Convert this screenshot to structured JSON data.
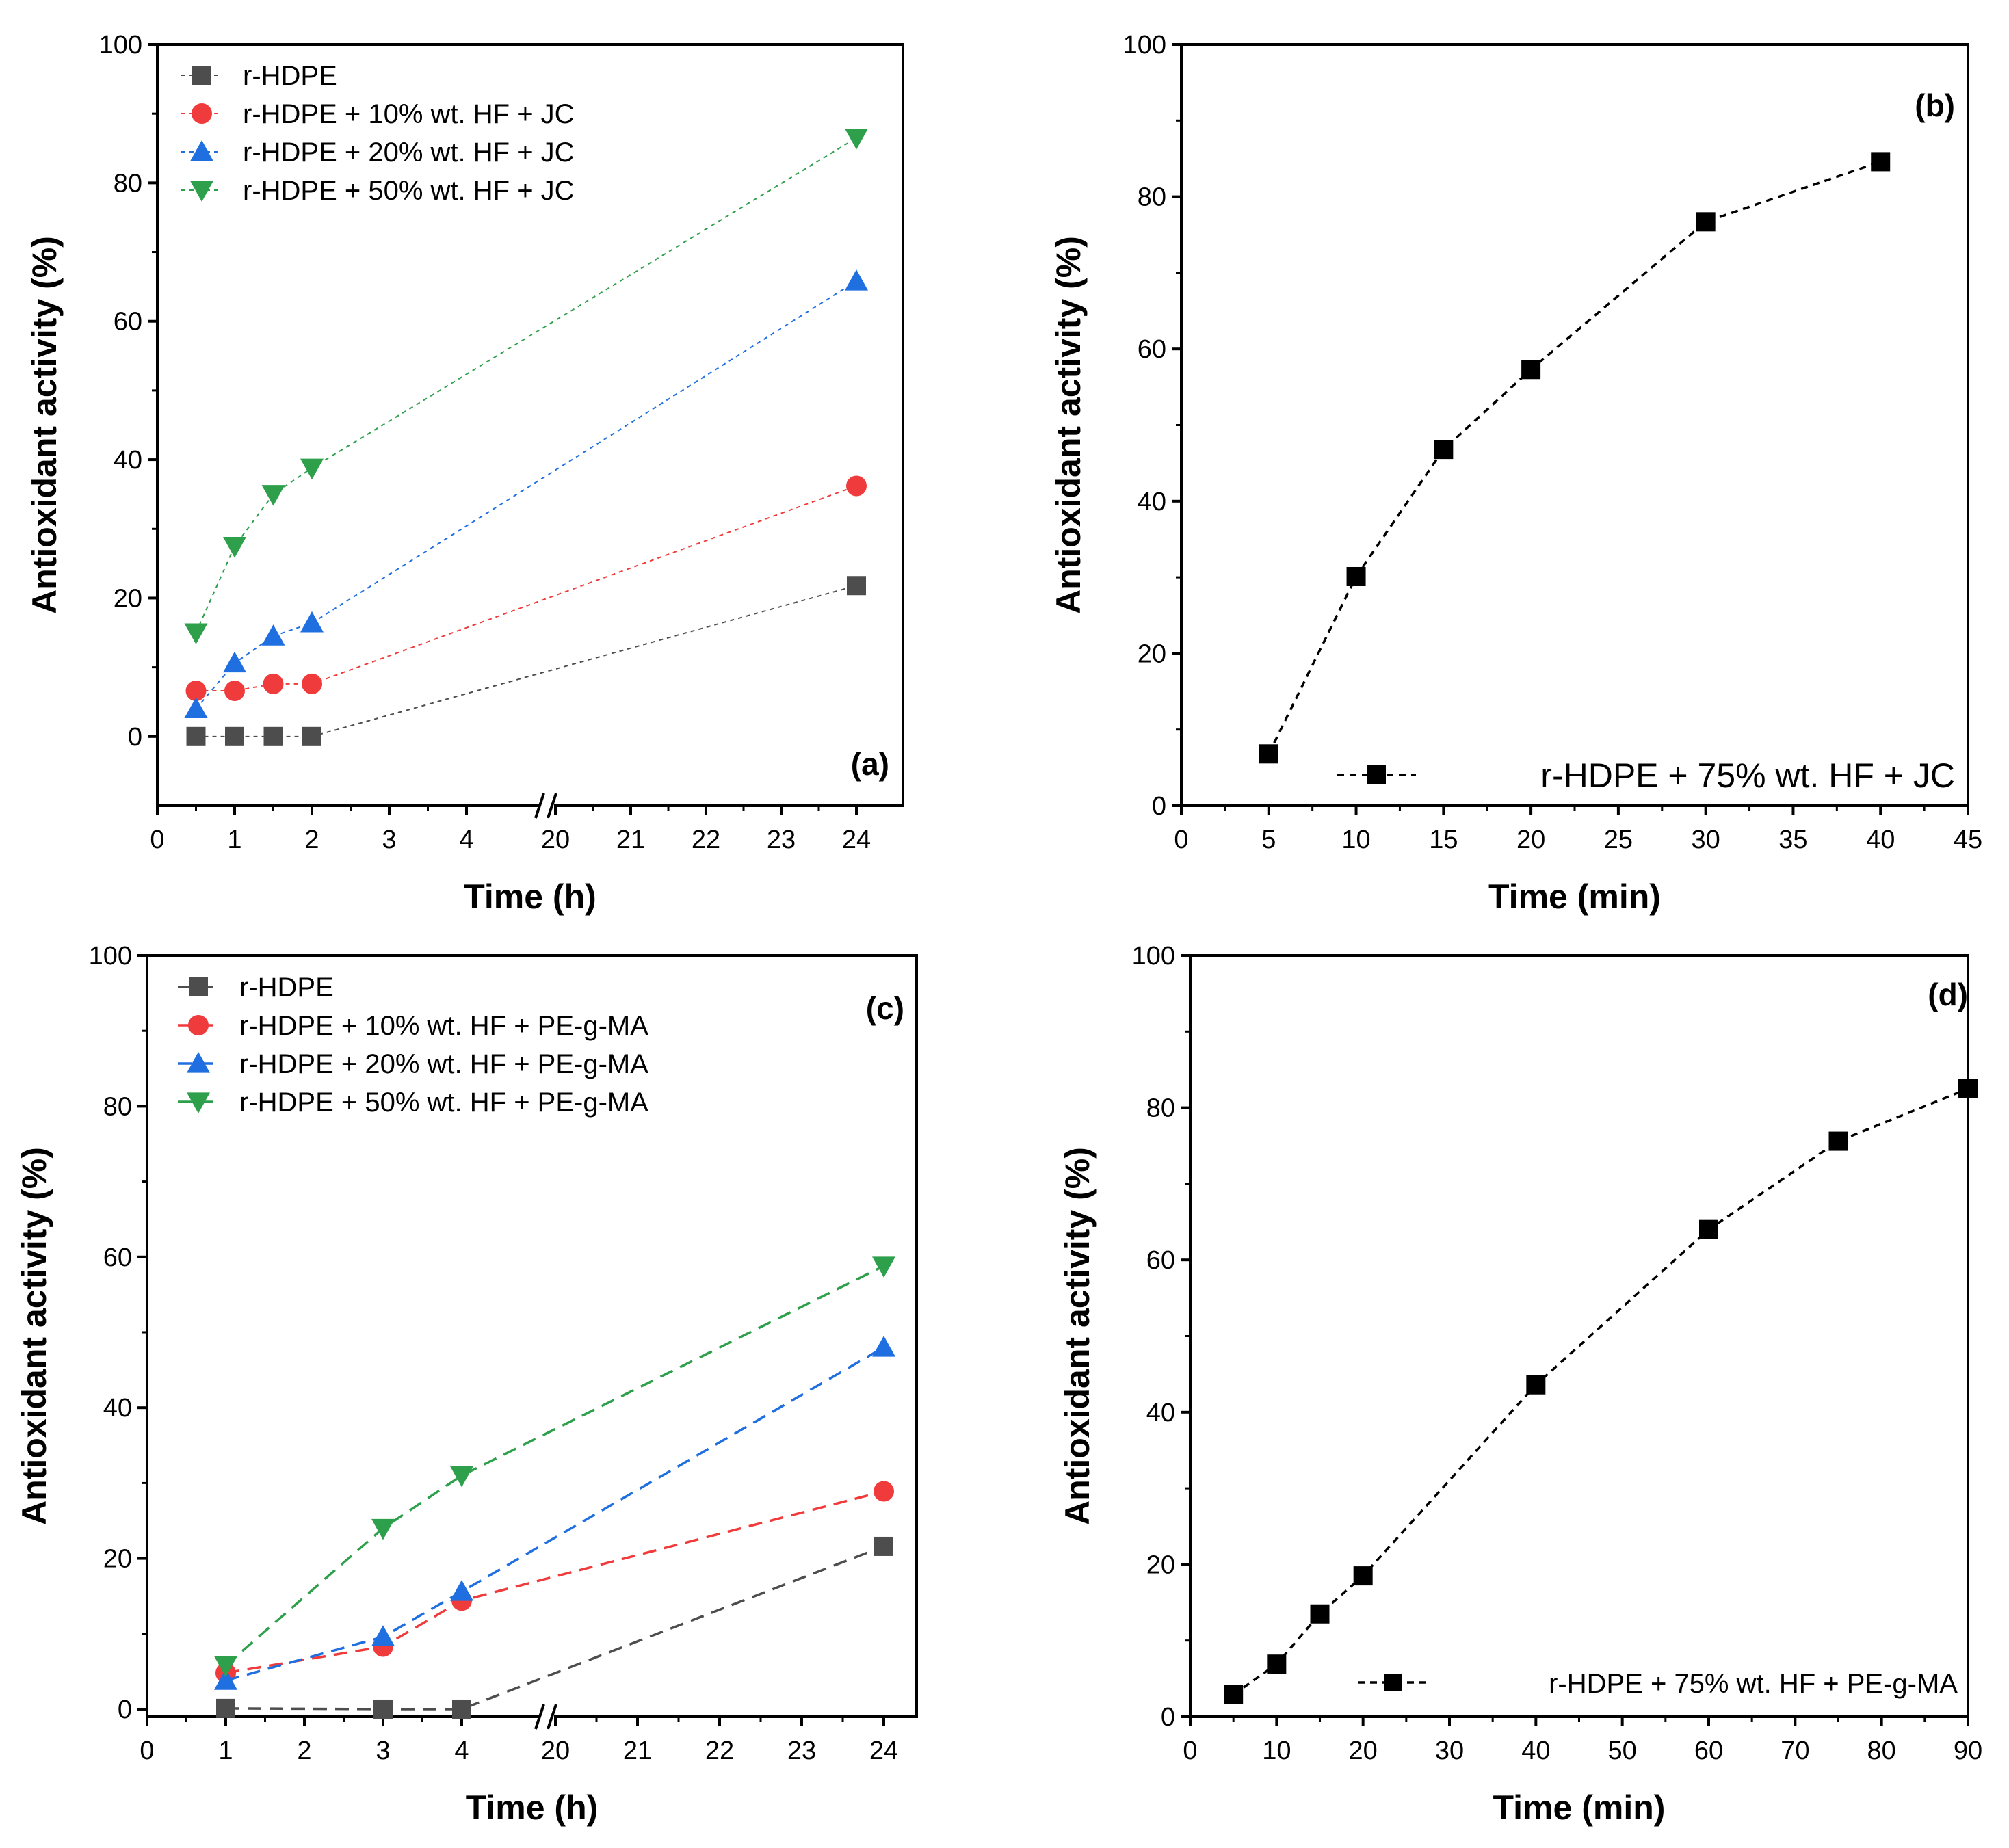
{
  "colors": {
    "r_hdpe": "#4d4d4d",
    "hf10": "#ef3b3b",
    "hf20": "#1f6fe0",
    "hf50": "#2ea04c",
    "black": "#000000"
  },
  "chart_data": [
    {
      "id": "a",
      "type": "line",
      "panel_label": "(a)",
      "xlabel": "Time (h)",
      "ylabel": "Antioxidant activity (%)",
      "ylim": [
        -10,
        100
      ],
      "yticks": [
        0,
        20,
        40,
        60,
        80,
        100
      ],
      "x_axis_broken": true,
      "xticks": [
        {
          "value": 0,
          "label": "0"
        },
        {
          "value": 1,
          "label": "1"
        },
        {
          "value": 2,
          "label": "2"
        },
        {
          "value": 3,
          "label": "3"
        },
        {
          "value": 4,
          "label": "4"
        },
        {
          "value": 20,
          "label": "20"
        },
        {
          "value": 21,
          "label": "21"
        },
        {
          "value": 22,
          "label": "22"
        },
        {
          "value": 23,
          "label": "23"
        },
        {
          "value": 24,
          "label": "24"
        }
      ],
      "legend_position": "top-left",
      "series": [
        {
          "name": "r-HDPE",
          "marker": "square",
          "color_key": "r_hdpe",
          "x": [
            0.5,
            1,
            1.5,
            2,
            24
          ],
          "values": [
            0,
            0,
            0,
            0,
            21.8
          ]
        },
        {
          "name": "r-HDPE + 10% wt. HF + JC",
          "marker": "circle",
          "color_key": "hf10",
          "x": [
            0.5,
            1,
            1.5,
            2,
            24
          ],
          "values": [
            6.6,
            6.6,
            7.6,
            7.6,
            36.2
          ]
        },
        {
          "name": "r-HDPE + 20% wt. HF + JC",
          "marker": "triangle-up",
          "color_key": "hf20",
          "x": [
            0.5,
            1,
            1.5,
            2,
            24
          ],
          "values": [
            4.0,
            10.6,
            14.5,
            16.4,
            65.8
          ]
        },
        {
          "name": "r-HDPE + 50% wt. HF + JC",
          "marker": "triangle-down",
          "color_key": "hf50",
          "x": [
            0.5,
            1,
            1.5,
            2,
            24
          ],
          "values": [
            15.0,
            27.5,
            35.0,
            38.8,
            86.5
          ]
        }
      ]
    },
    {
      "id": "b",
      "type": "line",
      "panel_label": "(b)",
      "xlabel": "Time (min)",
      "ylabel": "Antioxidant activity (%)",
      "xlim": [
        0,
        45
      ],
      "ylim": [
        0,
        100
      ],
      "xticks": [
        {
          "value": 0,
          "label": "0"
        },
        {
          "value": 5,
          "label": "5"
        },
        {
          "value": 10,
          "label": "10"
        },
        {
          "value": 15,
          "label": "15"
        },
        {
          "value": 20,
          "label": "20"
        },
        {
          "value": 25,
          "label": "25"
        },
        {
          "value": 30,
          "label": "30"
        },
        {
          "value": 35,
          "label": "35"
        },
        {
          "value": 40,
          "label": "40"
        },
        {
          "value": 45,
          "label": "45"
        }
      ],
      "yticks": [
        0,
        20,
        40,
        60,
        80,
        100
      ],
      "legend_position": "bottom-right",
      "series": [
        {
          "name": "r-HDPE + 75% wt. HF + JC",
          "marker": "square",
          "color_key": "black",
          "x": [
            5,
            10,
            15,
            20,
            30,
            40
          ],
          "values": [
            6.8,
            30.1,
            46.8,
            57.3,
            76.7,
            84.6
          ]
        }
      ]
    },
    {
      "id": "c",
      "type": "line",
      "panel_label": "(c)",
      "xlabel": "Time (h)",
      "ylabel": "Antioxidant activity (%)",
      "ylim": [
        -1,
        100
      ],
      "yticks": [
        0,
        20,
        40,
        60,
        80,
        100
      ],
      "x_axis_broken": true,
      "xticks": [
        {
          "value": 0,
          "label": "0"
        },
        {
          "value": 1,
          "label": "1"
        },
        {
          "value": 2,
          "label": "2"
        },
        {
          "value": 3,
          "label": "3"
        },
        {
          "value": 4,
          "label": "4"
        },
        {
          "value": 20,
          "label": "20"
        },
        {
          "value": 21,
          "label": "21"
        },
        {
          "value": 22,
          "label": "22"
        },
        {
          "value": 23,
          "label": "23"
        },
        {
          "value": 24,
          "label": "24"
        }
      ],
      "legend_position": "top-left",
      "series": [
        {
          "name": "r-HDPE",
          "marker": "square",
          "color_key": "r_hdpe",
          "x": [
            1,
            3,
            4,
            24
          ],
          "values": [
            0.1,
            0,
            0,
            21.6
          ]
        },
        {
          "name": "r-HDPE + 10% wt. HF + PE-g-MA",
          "marker": "circle",
          "color_key": "hf10",
          "x": [
            1,
            3,
            4,
            24
          ],
          "values": [
            4.8,
            8.3,
            14.4,
            28.9
          ]
        },
        {
          "name": "r-HDPE + 20% wt. HF + PE-g-MA",
          "marker": "triangle-up",
          "color_key": "hf20",
          "x": [
            1,
            3,
            4,
            24
          ],
          "values": [
            3.8,
            9.6,
            15.6,
            48.0
          ]
        },
        {
          "name": "r-HDPE + 50% wt. HF + PE-g-MA",
          "marker": "triangle-down",
          "color_key": "hf50",
          "x": [
            1,
            3,
            4,
            24
          ],
          "values": [
            5.8,
            24.0,
            31.0,
            58.8
          ]
        }
      ]
    },
    {
      "id": "d",
      "type": "line",
      "panel_label": "(d)",
      "xlabel": "Time (min)",
      "ylabel": "Antioxidant activity (%)",
      "xlim": [
        0,
        90
      ],
      "ylim": [
        0,
        100
      ],
      "xticks": [
        {
          "value": 0,
          "label": "0"
        },
        {
          "value": 10,
          "label": "10"
        },
        {
          "value": 20,
          "label": "20"
        },
        {
          "value": 30,
          "label": "30"
        },
        {
          "value": 40,
          "label": "40"
        },
        {
          "value": 50,
          "label": "50"
        },
        {
          "value": 60,
          "label": "60"
        },
        {
          "value": 70,
          "label": "70"
        },
        {
          "value": 80,
          "label": "80"
        },
        {
          "value": 90,
          "label": "90"
        }
      ],
      "yticks": [
        0,
        20,
        40,
        60,
        80,
        100
      ],
      "legend_position": "bottom-right",
      "series": [
        {
          "name": "r-HDPE + 75% wt. HF + PE-g-MA",
          "marker": "square",
          "color_key": "black",
          "x": [
            5,
            10,
            15,
            20,
            40,
            60,
            75,
            90
          ],
          "values": [
            2.9,
            6.9,
            13.5,
            18.5,
            43.6,
            64.0,
            75.6,
            82.5
          ]
        }
      ]
    }
  ]
}
